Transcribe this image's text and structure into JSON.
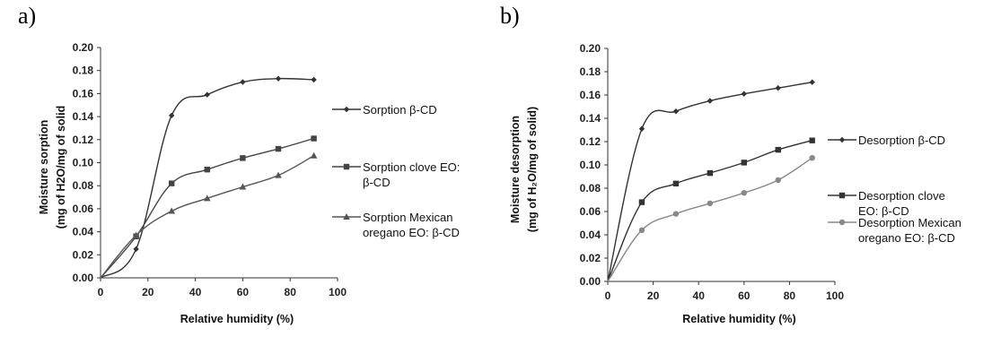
{
  "chart_data": [
    {
      "panel_label": "a)",
      "type": "line",
      "xlabel": "Relative humidity (%)",
      "ylabel_line1": "Moisture sorption",
      "ylabel_line2": "(mg of H2O/mg of solid",
      "xlim": [
        0,
        100
      ],
      "ylim": [
        0,
        0.2
      ],
      "x_ticks": [
        "0",
        "20",
        "40",
        "60",
        "80",
        "100"
      ],
      "y_ticks": [
        "0.00",
        "0.02",
        "0.04",
        "0.06",
        "0.08",
        "0.10",
        "0.12",
        "0.14",
        "0.16",
        "0.18",
        "0.20"
      ],
      "grid": false,
      "legend_position": "right",
      "series": [
        {
          "name_lines": [
            "Sorption β-CD"
          ],
          "marker": "diamond",
          "color": "#333333",
          "points": [
            [
              0,
              0.0
            ],
            [
              15,
              0.025
            ],
            [
              30,
              0.141
            ],
            [
              45,
              0.159
            ],
            [
              60,
              0.17
            ],
            [
              75,
              0.173
            ],
            [
              90,
              0.172
            ]
          ]
        },
        {
          "name_lines": [
            "Sorption clove EO:",
            "β-CD"
          ],
          "marker": "square",
          "color": "#444444",
          "points": [
            [
              0,
              0.0
            ],
            [
              15,
              0.036
            ],
            [
              30,
              0.082
            ],
            [
              45,
              0.094
            ],
            [
              60,
              0.104
            ],
            [
              75,
              0.112
            ],
            [
              90,
              0.121
            ]
          ]
        },
        {
          "name_lines": [
            "Sorption Mexican",
            "oregano EO: β-CD"
          ],
          "marker": "triangle",
          "color": "#555555",
          "points": [
            [
              0,
              0.0
            ],
            [
              15,
              0.037
            ],
            [
              30,
              0.058
            ],
            [
              45,
              0.069
            ],
            [
              60,
              0.079
            ],
            [
              75,
              0.089
            ],
            [
              90,
              0.106
            ]
          ]
        }
      ]
    },
    {
      "panel_label": "b)",
      "type": "line",
      "xlabel": "Relative humidity (%)",
      "ylabel_line1": "Moisture desorption",
      "ylabel_line2": "(mg of H₂O/mg of solid)",
      "xlim": [
        0,
        100
      ],
      "ylim": [
        0,
        0.2
      ],
      "x_ticks": [
        "0",
        "20",
        "40",
        "60",
        "80",
        "100"
      ],
      "y_ticks": [
        "0.00",
        "0.02",
        "0.04",
        "0.06",
        "0.08",
        "0.10",
        "0.12",
        "0.14",
        "0.16",
        "0.18",
        "0.20"
      ],
      "grid": false,
      "legend_position": "right",
      "series": [
        {
          "name_lines": [
            "Desorption β-CD"
          ],
          "marker": "diamond",
          "color": "#333333",
          "points": [
            [
              0,
              0.0
            ],
            [
              15,
              0.131
            ],
            [
              30,
              0.146
            ],
            [
              45,
              0.155
            ],
            [
              60,
              0.161
            ],
            [
              75,
              0.166
            ],
            [
              90,
              0.171
            ]
          ]
        },
        {
          "name_lines": [
            "Desorption clove",
            "EO: β-CD"
          ],
          "marker": "square",
          "color": "#333333",
          "points": [
            [
              0,
              0.0
            ],
            [
              15,
              0.068
            ],
            [
              30,
              0.084
            ],
            [
              45,
              0.093
            ],
            [
              60,
              0.102
            ],
            [
              75,
              0.113
            ],
            [
              90,
              0.121
            ]
          ]
        },
        {
          "name_lines": [
            "Desorption Mexican",
            "oregano EO: β-CD"
          ],
          "marker": "circle",
          "color": "#888888",
          "points": [
            [
              0,
              0.0
            ],
            [
              15,
              0.044
            ],
            [
              30,
              0.058
            ],
            [
              45,
              0.067
            ],
            [
              60,
              0.076
            ],
            [
              75,
              0.087
            ],
            [
              90,
              0.106
            ]
          ]
        }
      ]
    }
  ]
}
